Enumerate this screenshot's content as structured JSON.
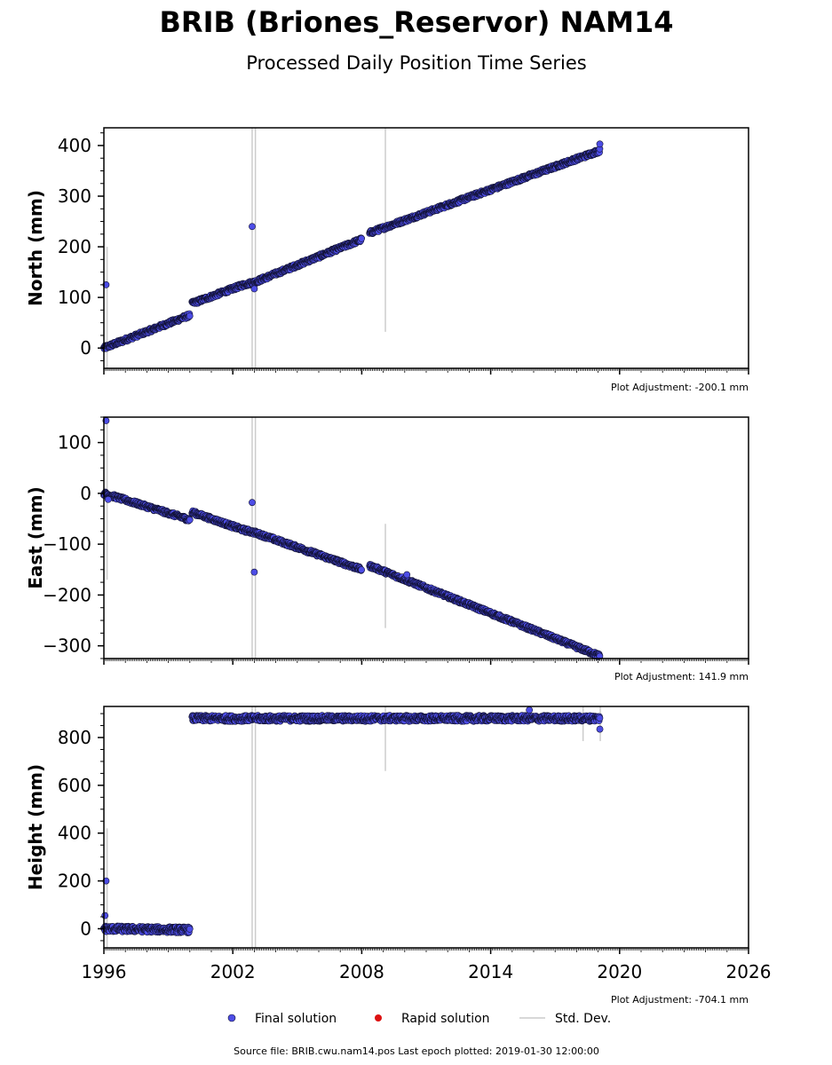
{
  "header": {
    "title": "BRIB (Briones_Reservor) NAM14",
    "subtitle": "Processed Daily Position Time Series"
  },
  "legend": {
    "final": "Final solution",
    "rapid": "Rapid solution",
    "stddev": "Std. Dev."
  },
  "footer": {
    "source": "Source file: BRIB.cwu.nam14.pos  Last epoch plotted: 2019-01-30 12:00:00"
  },
  "colors": {
    "final_fill": "#4d4de6",
    "final_edge": "#111133",
    "rapid": "#dd1111",
    "stddev": "#cccccc"
  },
  "chart_data": [
    {
      "type": "scatter",
      "ylabel": "North (mm)",
      "adjustment": "Plot Adjustment: -200.1 mm",
      "xlim": [
        1996,
        2026
      ],
      "ylim": [
        -40,
        435
      ],
      "yticks": [
        0,
        100,
        200,
        300,
        400
      ],
      "xticks": [
        1996,
        2002,
        2008,
        2014,
        2020,
        2026
      ],
      "trend": [
        {
          "x": 1996.0,
          "y": 0
        },
        {
          "x": 2000.0,
          "y": 65
        },
        {
          "x": 2000.1,
          "y": 88
        },
        {
          "x": 2002.5,
          "y": 125
        },
        {
          "x": 2003.0,
          "y": 130
        },
        {
          "x": 2008.2,
          "y": 218
        },
        {
          "x": 2008.4,
          "y": 228
        },
        {
          "x": 2019.08,
          "y": 390
        }
      ],
      "outliers": [
        {
          "x": 1996.1,
          "y": 125
        },
        {
          "x": 2002.9,
          "y": 240
        },
        {
          "x": 2003.0,
          "y": 117
        },
        {
          "x": 2019.08,
          "y": 403
        }
      ],
      "stddev_bars": [
        {
          "x": 1996.15,
          "low": -40,
          "high": 200
        },
        {
          "x": 2002.9,
          "low": -40,
          "high": 435
        },
        {
          "x": 2003.05,
          "low": -40,
          "high": 435
        },
        {
          "x": 2009.1,
          "low": 32,
          "high": 435
        }
      ]
    },
    {
      "type": "scatter",
      "ylabel": "East (mm)",
      "adjustment": "Plot Adjustment: 141.9 mm",
      "xlim": [
        1996,
        2026
      ],
      "ylim": [
        -325,
        150
      ],
      "yticks": [
        100,
        0,
        -100,
        -200,
        -300
      ],
      "xticks": [
        1996,
        2002,
        2008,
        2014,
        2020,
        2026
      ],
      "trend": [
        {
          "x": 1996.0,
          "y": 0
        },
        {
          "x": 2000.0,
          "y": -52
        },
        {
          "x": 2000.1,
          "y": -37
        },
        {
          "x": 2002.5,
          "y": -72
        },
        {
          "x": 2003.0,
          "y": -77
        },
        {
          "x": 2008.0,
          "y": -150
        },
        {
          "x": 2008.4,
          "y": -143
        },
        {
          "x": 2019.08,
          "y": -320
        }
      ],
      "outliers": [
        {
          "x": 1996.1,
          "y": 143
        },
        {
          "x": 2002.9,
          "y": -18
        },
        {
          "x": 2003.0,
          "y": -155
        },
        {
          "x": 1996.2,
          "y": -12
        },
        {
          "x": 2010.1,
          "y": -160
        }
      ],
      "stddev_bars": [
        {
          "x": 1996.15,
          "low": -170,
          "high": 150
        },
        {
          "x": 2002.9,
          "low": -325,
          "high": 150
        },
        {
          "x": 2003.05,
          "low": -325,
          "high": 150
        },
        {
          "x": 2009.1,
          "low": -265,
          "high": -60
        }
      ]
    },
    {
      "type": "scatter",
      "ylabel": "Height (mm)",
      "adjustment": "Plot Adjustment: -704.1 mm",
      "xlim": [
        1996,
        2026
      ],
      "ylim": [
        -80,
        930
      ],
      "yticks": [
        0,
        200,
        400,
        600,
        800
      ],
      "xticks": [
        1996,
        2002,
        2008,
        2014,
        2020,
        2026
      ],
      "trend": [
        {
          "x": 1996.0,
          "y": 0
        },
        {
          "x": 2000.0,
          "y": -5
        },
        {
          "x": 2000.1,
          "y": 880
        },
        {
          "x": 2019.08,
          "y": 880
        }
      ],
      "outliers": [
        {
          "x": 1996.1,
          "y": 200
        },
        {
          "x": 1996.05,
          "y": 55
        },
        {
          "x": 2019.08,
          "y": 835
        },
        {
          "x": 2015.8,
          "y": 915
        }
      ],
      "stddev_bars": [
        {
          "x": 1996.15,
          "low": -80,
          "high": 420
        },
        {
          "x": 2002.9,
          "low": -80,
          "high": 930
        },
        {
          "x": 2003.05,
          "low": -80,
          "high": 930
        },
        {
          "x": 2009.1,
          "low": 660,
          "high": 930
        },
        {
          "x": 2018.3,
          "low": 785,
          "high": 930
        },
        {
          "x": 2019.1,
          "low": 785,
          "high": 930
        }
      ]
    }
  ]
}
